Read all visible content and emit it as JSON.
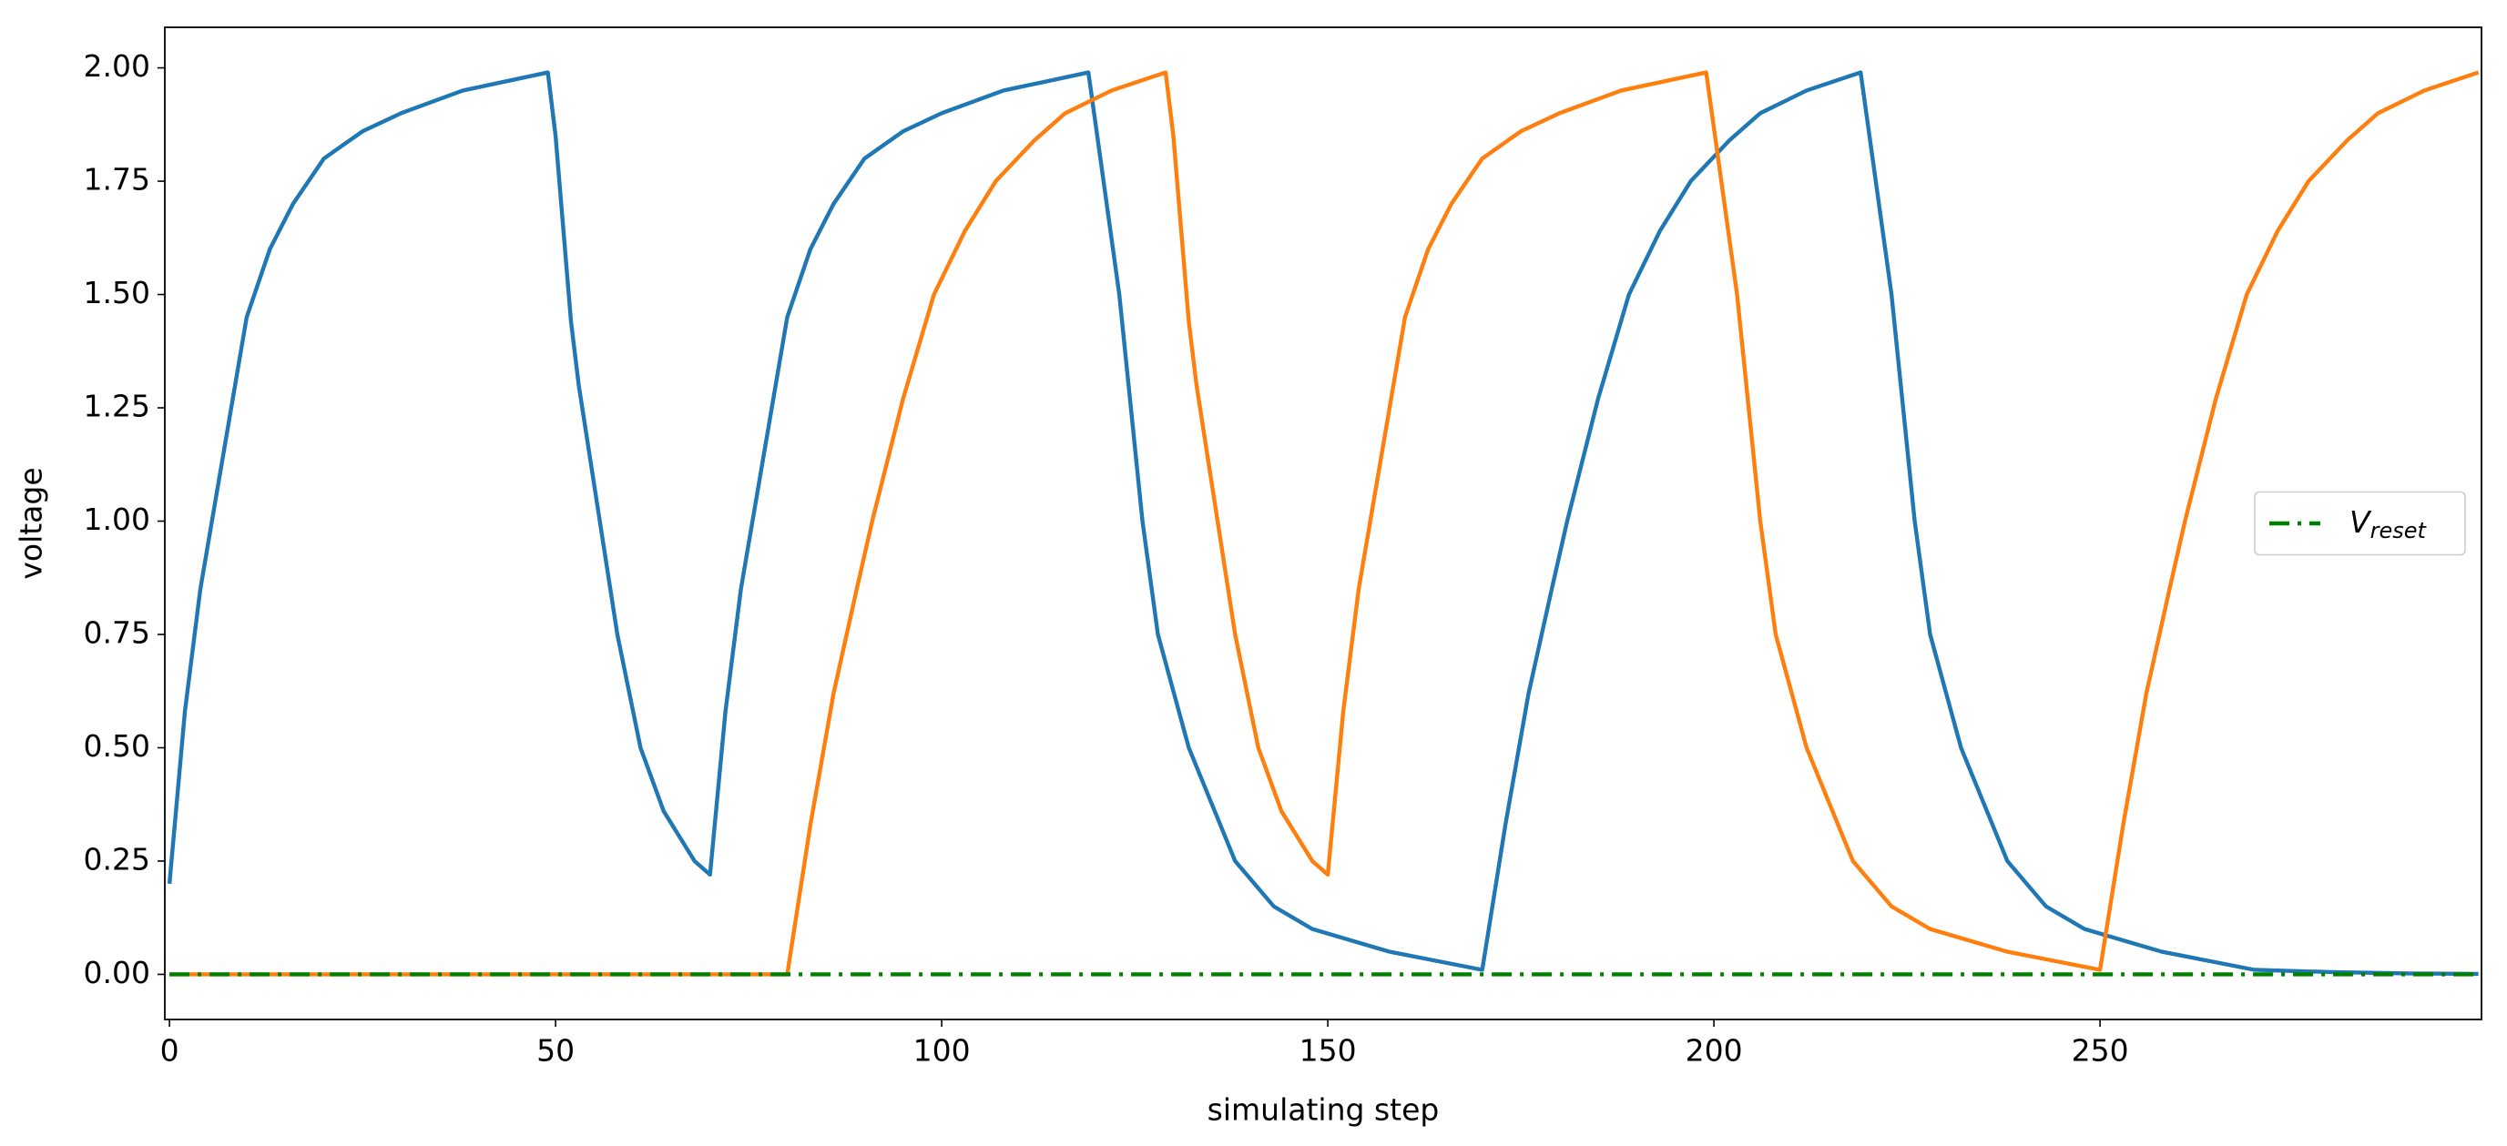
{
  "chart_data": {
    "type": "line",
    "xlabel": "simulating step",
    "ylabel": "voltage",
    "xlim": [
      -0.6,
      299.4
    ],
    "ylim": [
      -0.0995,
      2.0895
    ],
    "xticks": [
      0,
      50,
      100,
      150,
      200,
      250
    ],
    "yticks": [
      {
        "value": 0,
        "label": "0.00"
      },
      {
        "value": 0.25,
        "label": "0.25"
      },
      {
        "value": 0.5,
        "label": "0.50"
      },
      {
        "value": 0.75,
        "label": "0.75"
      },
      {
        "value": 1,
        "label": "1.00"
      },
      {
        "value": 1.25,
        "label": "1.25"
      },
      {
        "value": 1.5,
        "label": "1.50"
      },
      {
        "value": 1.75,
        "label": "1.75"
      },
      {
        "value": 2,
        "label": "2.00"
      }
    ],
    "legend": "center right",
    "series": [
      {
        "color": "#1f77b4",
        "x": [
          0,
          2,
          4,
          6,
          8,
          10,
          13,
          16,
          20,
          25,
          30,
          38,
          49,
          50,
          52,
          53,
          56,
          58,
          61,
          64,
          68,
          70,
          72,
          74,
          76,
          78,
          80,
          83,
          86,
          90,
          95,
          100,
          108,
          119,
          123,
          126,
          128,
          132,
          138,
          143,
          148,
          154,
          158,
          164,
          170,
          173,
          176,
          179,
          181,
          185,
          189,
          193,
          197,
          202,
          206,
          212,
          219,
          223,
          226,
          228,
          232,
          238,
          243,
          248,
          254,
          258,
          264,
          270,
          280,
          290,
          299
        ],
        "values": [
          0.2,
          0.58,
          0.85,
          1.05,
          1.25,
          1.45,
          1.6,
          1.7,
          1.8,
          1.86,
          1.9,
          1.95,
          1.99,
          1.85,
          1.44,
          1.3,
          0.97,
          0.75,
          0.5,
          0.36,
          0.25,
          0.22,
          0.58,
          0.85,
          1.05,
          1.25,
          1.45,
          1.6,
          1.7,
          1.8,
          1.86,
          1.9,
          1.95,
          1.99,
          1.5,
          1.0,
          0.75,
          0.5,
          0.25,
          0.15,
          0.1,
          0.07,
          0.05,
          0.03,
          0.01,
          0.33,
          0.62,
          0.85,
          1.0,
          1.27,
          1.5,
          1.64,
          1.75,
          1.84,
          1.9,
          1.95,
          1.99,
          1.5,
          1.0,
          0.75,
          0.5,
          0.25,
          0.15,
          0.1,
          0.07,
          0.05,
          0.03,
          0.01,
          0.005,
          0.002,
          0.001
        ]
      },
      {
        "color": "#ff7f0e",
        "x": [
          0,
          80,
          83,
          86,
          89,
          91,
          95,
          99,
          103,
          107,
          112,
          116,
          122,
          129,
          130,
          132,
          133,
          136,
          138,
          141,
          144,
          148,
          150,
          152,
          154,
          156,
          158,
          160,
          163,
          166,
          170,
          175,
          180,
          188,
          199,
          203,
          206,
          208,
          212,
          218,
          223,
          228,
          234,
          238,
          244,
          250,
          253,
          256,
          259,
          261,
          265,
          269,
          273,
          277,
          282,
          286,
          292,
          299
        ],
        "values": [
          0,
          0,
          0.33,
          0.62,
          0.85,
          1.0,
          1.27,
          1.5,
          1.64,
          1.75,
          1.84,
          1.9,
          1.95,
          1.99,
          1.85,
          1.44,
          1.3,
          0.97,
          0.75,
          0.5,
          0.36,
          0.25,
          0.22,
          0.58,
          0.85,
          1.05,
          1.25,
          1.45,
          1.6,
          1.7,
          1.8,
          1.86,
          1.9,
          1.95,
          1.99,
          1.5,
          1.0,
          0.75,
          0.5,
          0.25,
          0.15,
          0.1,
          0.07,
          0.05,
          0.03,
          0.01,
          0.33,
          0.62,
          0.85,
          1.0,
          1.27,
          1.5,
          1.64,
          1.75,
          1.84,
          1.9,
          1.95,
          1.99
        ]
      },
      {
        "name": "V",
        "name_subscript": "reset",
        "color": "#008000",
        "dash": "dashdot",
        "x": [
          0,
          299
        ],
        "values": [
          0,
          0
        ]
      }
    ]
  }
}
